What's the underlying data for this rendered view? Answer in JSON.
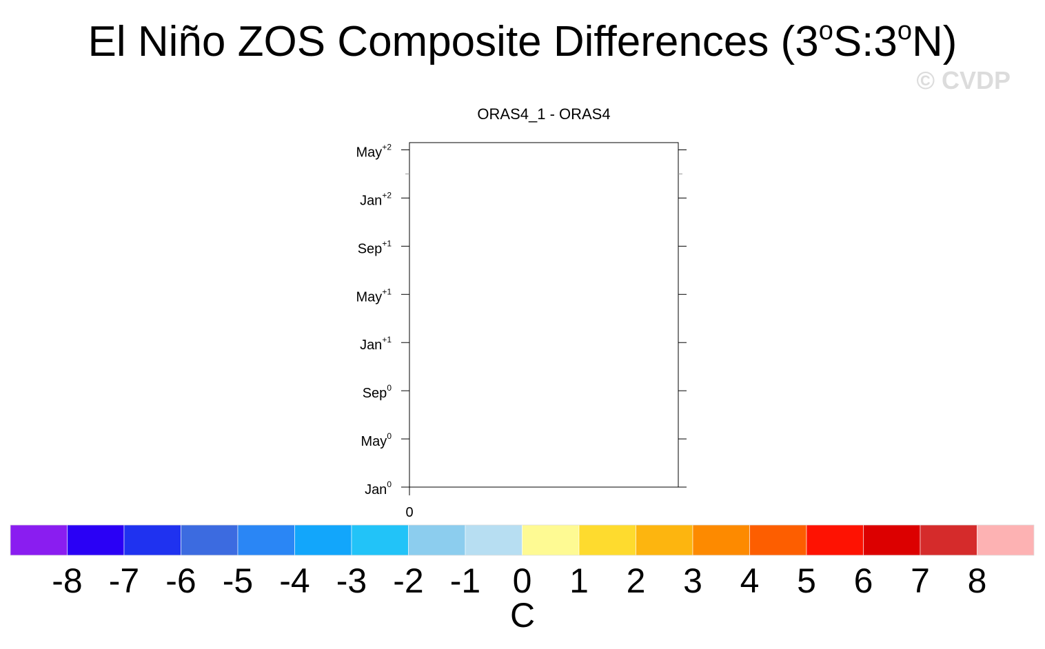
{
  "title": {
    "main": "El Niño ZOS Composite Differences (3",
    "deg1": "o",
    "mid": "S:3",
    "deg2": "o",
    "end": "N)"
  },
  "watermark": "© CVDP",
  "chart_data": {
    "type": "heatmap",
    "subtitle": "ORAS4_1 - ORAS4",
    "x_ticks": [
      "0"
    ],
    "y_ticks": [
      {
        "base": "Jan",
        "sup": "0"
      },
      {
        "base": "May",
        "sup": "0"
      },
      {
        "base": "Sep",
        "sup": "0"
      },
      {
        "base": "Jan",
        "sup": "+1"
      },
      {
        "base": "May",
        "sup": "+1"
      },
      {
        "base": "Sep",
        "sup": "+1"
      },
      {
        "base": "Jan",
        "sup": "+2"
      },
      {
        "base": "May",
        "sup": "+2"
      }
    ],
    "values": [],
    "colorbar": {
      "labels": [
        "-8",
        "-7",
        "-6",
        "-5",
        "-4",
        "-3",
        "-2",
        "-1",
        "0",
        "1",
        "2",
        "3",
        "4",
        "5",
        "6",
        "7",
        "8"
      ],
      "colors": [
        "#8a1df0",
        "#2a00f5",
        "#1f32f0",
        "#3c6be0",
        "#2a86f5",
        "#12a6fb",
        "#22c3f8",
        "#8ccdee",
        "#b7def2",
        "#fefa93",
        "#fedb2e",
        "#fdb50f",
        "#fd8a00",
        "#fd5e00",
        "#fe1202",
        "#dc0000",
        "#d52b2b",
        "#fdb2b3"
      ],
      "unit": "C"
    }
  }
}
